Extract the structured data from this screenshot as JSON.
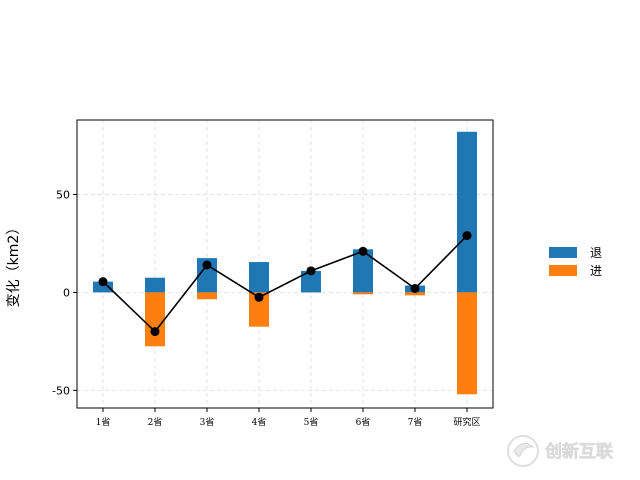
{
  "chart_data": {
    "type": "bar",
    "categories": [
      "1省",
      "2省",
      "3省",
      "4省",
      "5省",
      "6省",
      "7省",
      "研究区"
    ],
    "series": [
      {
        "name": "退",
        "color": "#1f77b4",
        "values": [
          5.5,
          7.5,
          17.5,
          15.5,
          11,
          22,
          3.5,
          82
        ]
      },
      {
        "name": "进",
        "color": "#ff7f0e",
        "values": [
          0,
          -27.5,
          -3.5,
          -17.5,
          0,
          -1,
          -1.5,
          -52
        ]
      }
    ],
    "line": {
      "color": "#000000",
      "marker": "circle",
      "values": [
        5.5,
        -20,
        14,
        -2.5,
        11,
        21,
        2,
        29
      ]
    },
    "ylabel": "变化（km2）",
    "xlabel": "",
    "title": "",
    "ylim": [
      -59,
      88
    ],
    "yticks": [
      -50,
      0,
      50
    ],
    "grid": true,
    "legend_position": "right"
  },
  "watermark": {
    "text": "创新互联",
    "icon": "brand-logo-icon"
  }
}
